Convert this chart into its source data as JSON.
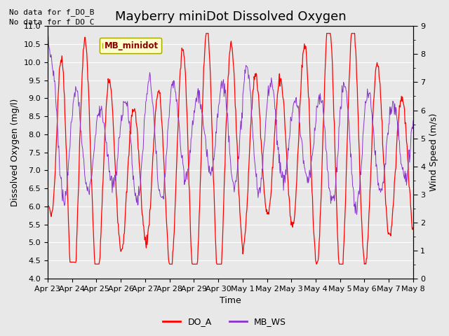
{
  "title": "Mayberry miniDot Dissolved Oxygen",
  "xlabel": "Time",
  "ylabel_left": "Dissolved Oxygen (mg/l)",
  "ylabel_right": "Wind Speed (m/s)",
  "note1": "No data for f_DO_B",
  "note2": "No data for f_DO_C",
  "legend_box_label": "MB_minidot",
  "ylim_left": [
    4.0,
    11.0
  ],
  "ylim_right": [
    0.0,
    9.0
  ],
  "xtick_labels": [
    "Apr 23",
    "Apr 24",
    "Apr 25",
    "Apr 26",
    "Apr 27",
    "Apr 28",
    "Apr 29",
    "Apr 30",
    "May 1",
    "May 2",
    "May 3",
    "May 4",
    "May 5",
    "May 6",
    "May 7",
    "May 8"
  ],
  "do_color": "#ff0000",
  "ws_color": "#8833cc",
  "plot_bg_color": "#e8e8e8",
  "fig_bg_color": "#e8e8e8",
  "grid_color": "#ffffff",
  "legend_do": "DO_A",
  "legend_ws": "MB_WS",
  "title_fontsize": 13,
  "label_fontsize": 9,
  "tick_fontsize": 8,
  "note_fontsize": 8
}
